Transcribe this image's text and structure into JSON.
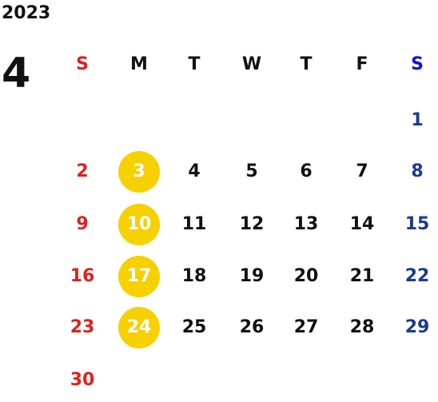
{
  "calendar": {
    "year": "2023",
    "month": "4",
    "weekdays": [
      "S",
      "M",
      "T",
      "W",
      "T",
      "F",
      "S"
    ],
    "first_weekday_index": 6,
    "days_in_month": 30,
    "highlighted_days": [
      3,
      10,
      17,
      24
    ],
    "colors": {
      "sunday": "#e02020",
      "saturday": "#1a3b8c",
      "saturday_header": "#1010e0",
      "weekday": "#111111",
      "highlight_fill": "#f7d000",
      "highlight_text": "#ffffff"
    }
  }
}
